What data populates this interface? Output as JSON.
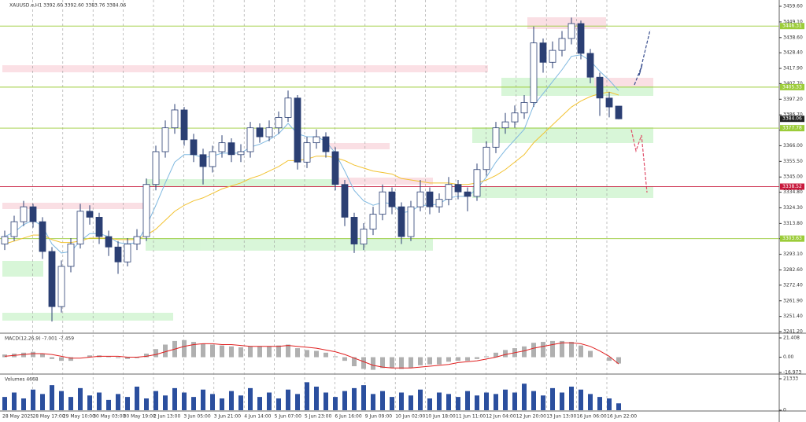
{
  "chart_data": {
    "type": "candlestick",
    "header": "XAUUSD.e,H1  3392.60 3392.60 3383.76 3384.06",
    "categories": [
      "28 May 2025",
      "28 May 17:00",
      "29 May 10:00",
      "30 May 03:00",
      "30 May 19:00",
      "2 Jun 13:00",
      "3 Jun 05:00",
      "3 Jun 21:00",
      "4 Jun 14:00",
      "5 Jun 07:00",
      "5 Jun 23:00",
      "6 Jun 16:00",
      "9 Jun 09:00",
      "10 Jun 02:00",
      "10 Jun 18:00",
      "11 Jun 11:00",
      "12 Jun 04:00",
      "12 Jun 20:00",
      "13 Jun 13:00",
      "16 Jun 06:00",
      "16 Jun 22:00"
    ],
    "open": [
      3300,
      3305,
      3315,
      3325,
      3315,
      3295,
      3258,
      3285,
      3300,
      3322,
      3318,
      3305,
      3298,
      3288,
      3300,
      3305,
      3340,
      3362,
      3378,
      3390,
      3370,
      3360,
      3352,
      3362,
      3368,
      3360,
      3362,
      3378,
      3372,
      3378,
      3385,
      3398,
      3355,
      3368,
      3372,
      3362,
      3340,
      3318,
      3300,
      3310,
      3320,
      3335,
      3325,
      3305,
      3325,
      3335,
      3325,
      3330,
      3340,
      3335,
      3332,
      3350,
      3365,
      3378,
      3382,
      3388,
      3395,
      3435,
      3422,
      3430,
      3438,
      3448,
      3428,
      3412,
      3398,
      3392.6
    ],
    "high": [
      3309,
      3319,
      3329,
      3327,
      3318,
      3298,
      3289,
      3304,
      3327,
      3326,
      3321,
      3309,
      3302,
      3304,
      3310,
      3344,
      3366,
      3383,
      3394,
      3392,
      3374,
      3364,
      3366,
      3373,
      3371,
      3367,
      3382,
      3381,
      3383,
      3389,
      3403,
      3400,
      3372,
      3377,
      3375,
      3365,
      3343,
      3321,
      3314,
      3325,
      3340,
      3338,
      3328,
      3329,
      3343,
      3338,
      3334,
      3345,
      3343,
      3338,
      3354,
      3369,
      3382,
      3388,
      3393,
      3400,
      3446,
      3438,
      3436,
      3443,
      3452,
      3450,
      3431,
      3415,
      3402,
      3392.6
    ],
    "low": [
      3296,
      3302,
      3312,
      3311,
      3290,
      3248,
      3254,
      3281,
      3297,
      3313,
      3300,
      3292,
      3280,
      3285,
      3296,
      3302,
      3336,
      3358,
      3374,
      3366,
      3355,
      3340,
      3348,
      3358,
      3355,
      3355,
      3358,
      3368,
      3369,
      3374,
      3382,
      3350,
      3351,
      3364,
      3358,
      3336,
      3312,
      3294,
      3296,
      3306,
      3316,
      3320,
      3300,
      3302,
      3322,
      3320,
      3321,
      3326,
      3330,
      3322,
      3329,
      3346,
      3361,
      3374,
      3378,
      3384,
      3392,
      3415,
      3418,
      3426,
      3434,
      3424,
      3408,
      3386,
      3385,
      3383.76
    ],
    "close": [
      3305,
      3315,
      3325,
      3315,
      3295,
      3258,
      3285,
      3300,
      3322,
      3318,
      3305,
      3298,
      3288,
      3300,
      3305,
      3340,
      3362,
      3378,
      3390,
      3370,
      3360,
      3352,
      3362,
      3368,
      3360,
      3362,
      3378,
      3372,
      3378,
      3385,
      3398,
      3355,
      3368,
      3372,
      3362,
      3340,
      3318,
      3300,
      3310,
      3320,
      3335,
      3325,
      3305,
      3325,
      3335,
      3325,
      3330,
      3340,
      3335,
      3332,
      3350,
      3365,
      3378,
      3382,
      3388,
      3395,
      3435,
      3422,
      3430,
      3438,
      3448,
      3428,
      3412,
      3398,
      3392,
      3384.06
    ],
    "up_color": "#ffffff",
    "down_color": "#2b3f73",
    "ma": [
      {
        "color": "#7fb8e0",
        "values": [
          3305,
          3308,
          3313,
          3316,
          3312,
          3300,
          3294,
          3295,
          3302,
          3307,
          3307,
          3305,
          3301,
          3300,
          3301,
          3312,
          3326,
          3341,
          3355,
          3360,
          3360,
          3358,
          3359,
          3361,
          3361,
          3361,
          3365,
          3367,
          3370,
          3374,
          3381,
          3374,
          3372,
          3372,
          3369,
          3361,
          3349,
          3336,
          3329,
          3326,
          3328,
          3327,
          3321,
          3322,
          3326,
          3326,
          3327,
          3331,
          3332,
          3332,
          3337,
          3345,
          3355,
          3363,
          3370,
          3377,
          3393,
          3401,
          3409,
          3417,
          3426,
          3427,
          3423,
          3416,
          3410,
          3403
        ]
      },
      {
        "color": "#f2c230",
        "values": [
          3300,
          3302,
          3304,
          3306,
          3306,
          3303,
          3301,
          3301,
          3302,
          3304,
          3304,
          3304,
          3303,
          3303,
          3303,
          3306,
          3310,
          3316,
          3322,
          3326,
          3329,
          3331,
          3334,
          3337,
          3339,
          3341,
          3344,
          3346,
          3349,
          3352,
          3356,
          3356,
          3357,
          3359,
          3359,
          3358,
          3356,
          3353,
          3351,
          3349,
          3348,
          3347,
          3344,
          3343,
          3342,
          3341,
          3341,
          3341,
          3340,
          3340,
          3341,
          3343,
          3346,
          3350,
          3355,
          3360,
          3368,
          3374,
          3380,
          3386,
          3392,
          3396,
          3399,
          3401,
          3402,
          3400
        ]
      }
    ],
    "ylim": [
      3241.2,
      3459.6
    ],
    "yticks": [
      {
        "value": 3459.6,
        "label": "3459.60"
      },
      {
        "value": 3449.1,
        "label": "3449.10"
      },
      {
        "value": 3438.6,
        "label": "3438.60"
      },
      {
        "value": 3428.4,
        "label": "3428.40"
      },
      {
        "value": 3417.9,
        "label": "3417.90"
      },
      {
        "value": 3407.7,
        "label": "3407.70"
      },
      {
        "value": 3397.2,
        "label": "3397.20"
      },
      {
        "value": 3386.7,
        "label": "3386.70"
      },
      {
        "value": 3376.5,
        "label": "3376.50"
      },
      {
        "value": 3366,
        "label": "3366.00"
      },
      {
        "value": 3355.5,
        "label": "3355.50"
      },
      {
        "value": 3345,
        "label": "3345.00"
      },
      {
        "value": 3334.8,
        "label": "3334.80"
      },
      {
        "value": 3324.3,
        "label": "3324.30"
      },
      {
        "value": 3313.8,
        "label": "3313.80"
      },
      {
        "value": 3303.6,
        "label": "3303.60"
      },
      {
        "value": 3293.1,
        "label": "3293.10"
      },
      {
        "value": 3282.6,
        "label": "3282.60"
      },
      {
        "value": 3272.4,
        "label": "3272.40"
      },
      {
        "value": 3261.9,
        "label": "3261.90"
      },
      {
        "value": 3251.4,
        "label": "3251.40"
      },
      {
        "value": 3241.2,
        "label": "3241.20"
      }
    ],
    "levels": [
      {
        "value": 3446.31,
        "color": "#9ccc3a"
      },
      {
        "value": 3405.33,
        "color": "#9ccc3a"
      },
      {
        "value": 3377.78,
        "color": "#9ccc3a"
      },
      {
        "value": 3338.52,
        "color": "#c8193c"
      },
      {
        "value": 3303.63,
        "color": "#9ccc3a"
      }
    ],
    "xgrid": true,
    "macd": {
      "label": "MACD(12,26,9) -7.001 -7.459",
      "ylim": [
        -16.973,
        21.408
      ],
      "yticks": [
        21.408,
        {
          "value": 0,
          "label": "0.00"
        },
        -16.973
      ],
      "histogram": {
        "color": "#b0b0b0",
        "values": [
          3,
          4,
          5,
          6,
          4,
          -2,
          -4,
          -4,
          0,
          2,
          2,
          1,
          -1,
          -2,
          -1,
          4,
          9,
          14,
          18,
          19,
          17,
          15,
          14,
          13,
          12,
          11,
          12,
          12,
          12,
          13,
          14,
          10,
          8,
          7,
          5,
          1,
          -4,
          -10,
          -13,
          -14,
          -12,
          -12,
          -13,
          -12,
          -9,
          -8,
          -8,
          -5,
          -4,
          -4,
          -2,
          1,
          5,
          8,
          10,
          12,
          16,
          17,
          18,
          18,
          17,
          13,
          7,
          0,
          -4,
          -7.001
        ]
      },
      "signal": {
        "color": "#e02020",
        "values": [
          1,
          2,
          3,
          4,
          4,
          3,
          1,
          -1,
          -1,
          0,
          1,
          1,
          1,
          0,
          0,
          1,
          3,
          6,
          9,
          12,
          14,
          15,
          15,
          14,
          14,
          13,
          12,
          12,
          12,
          12,
          13,
          12,
          11,
          10,
          8,
          6,
          3,
          -1,
          -5,
          -9,
          -11,
          -12,
          -12,
          -12,
          -11,
          -10,
          -9,
          -8,
          -6,
          -5,
          -4,
          -2,
          0,
          3,
          5,
          7,
          10,
          12,
          14,
          16,
          16,
          15,
          12,
          7,
          1,
          -7.459
        ]
      }
    },
    "volume": {
      "label": "Volumes 4668",
      "color": "#2b4f9e",
      "ylim": [
        0,
        21333
      ],
      "yticks": [
        21333,
        0
      ],
      "values": [
        9000,
        12000,
        8000,
        14000,
        11000,
        17000,
        13000,
        9000,
        15000,
        10000,
        12000,
        7000,
        11000,
        9000,
        16000,
        8000,
        13000,
        10000,
        15000,
        12000,
        9000,
        14000,
        11000,
        8000,
        13000,
        10000,
        15000,
        9000,
        12000,
        8000,
        14000,
        11000,
        19000,
        16000,
        12000,
        9000,
        13000,
        15000,
        17000,
        11000,
        13000,
        9000,
        12000,
        10000,
        14000,
        8000,
        12000,
        11000,
        9000,
        13000,
        10000,
        12000,
        11000,
        14000,
        12000,
        18000,
        13000,
        10000,
        15000,
        12000,
        16000,
        14000,
        11000,
        9000,
        8000,
        4668
      ]
    }
  }
}
